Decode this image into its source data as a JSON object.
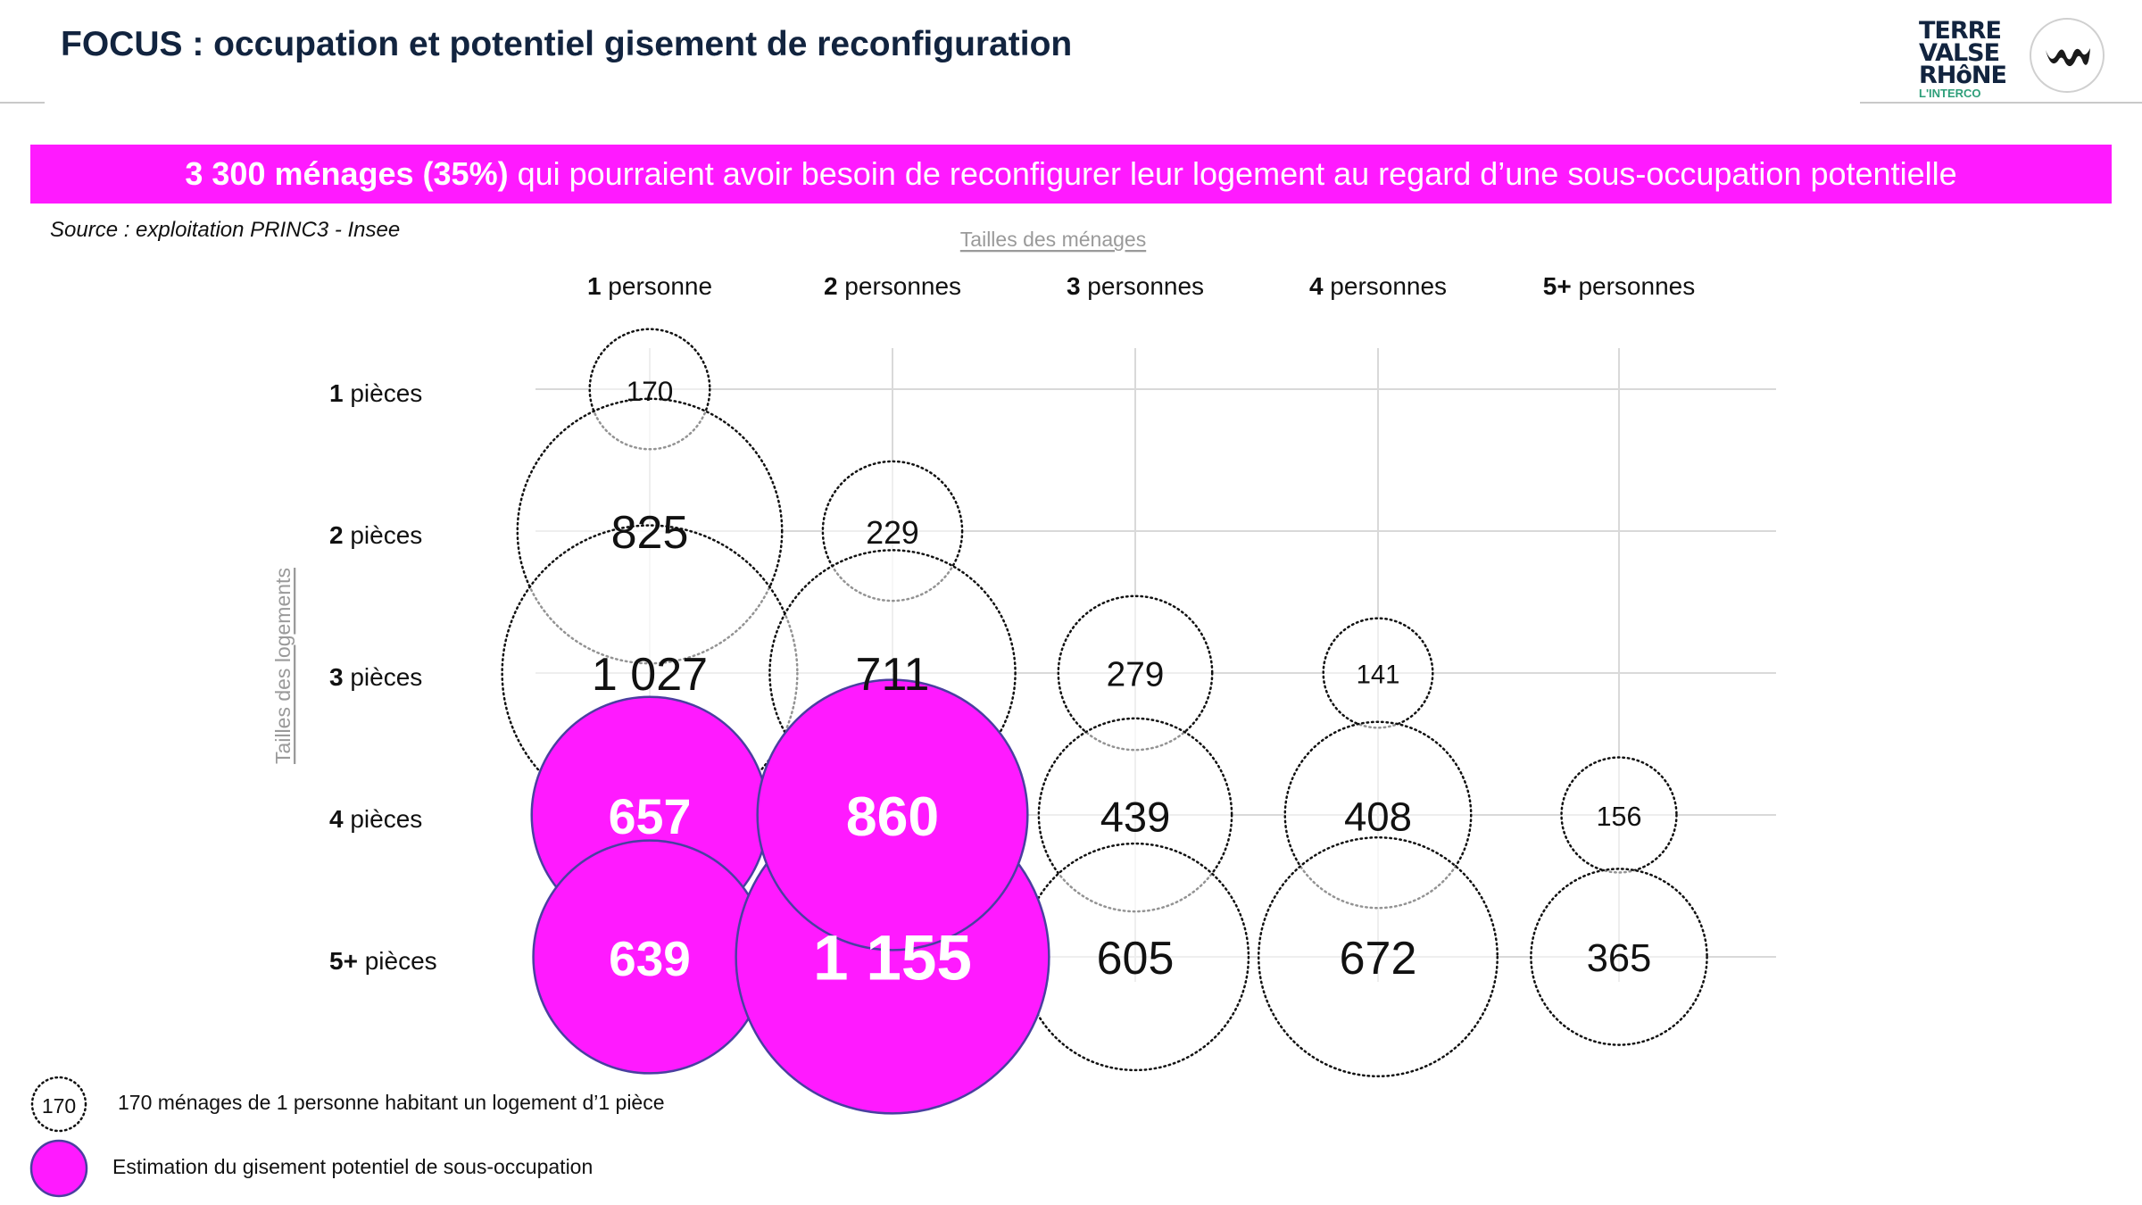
{
  "title": "FOCUS : occupation et potentiel gisement de reconfiguration",
  "logo": {
    "lines": [
      "TERRE",
      "VALSE",
      "RHôNE"
    ],
    "sub": "L'INTERCO"
  },
  "banner": {
    "bold": "3 300 ménages (35%)",
    "text": " qui pourraient avoir besoin de reconfigurer leur logement au regard d’une sous-occupation potentielle"
  },
  "source": "Source : exploitation PRINC3 - Insee",
  "colors": {
    "accent": "#ff1aff",
    "title": "#12243f",
    "grid": "#d9d9d9"
  },
  "chart_data": {
    "type": "bubble",
    "xlabel": "Tailles des ménages",
    "ylabel": "Tailles des logements",
    "columns": [
      {
        "num": "1",
        "word": " personne"
      },
      {
        "num": "2",
        "word": " personnes"
      },
      {
        "num": "3",
        "word": " personnes"
      },
      {
        "num": "4",
        "word": " personnes"
      },
      {
        "num": "5+",
        "word": " personnes"
      }
    ],
    "rows": [
      {
        "num": "1",
        "word": " pièces"
      },
      {
        "num": "2",
        "word": " pièces"
      },
      {
        "num": "3",
        "word": " pièces"
      },
      {
        "num": "4",
        "word": " pièces"
      },
      {
        "num": "5+",
        "word": " pièces"
      }
    ],
    "households": [
      {
        "col": 0,
        "row": 0,
        "value": 170,
        "label": "170"
      },
      {
        "col": 0,
        "row": 1,
        "value": 825,
        "label": "825"
      },
      {
        "col": 0,
        "row": 2,
        "value": 1027,
        "label": "1 027"
      },
      {
        "col": 1,
        "row": 1,
        "value": 229,
        "label": "229"
      },
      {
        "col": 1,
        "row": 2,
        "value": 711,
        "label": "711"
      },
      {
        "col": 2,
        "row": 2,
        "value": 279,
        "label": "279"
      },
      {
        "col": 2,
        "row": 3,
        "value": 439,
        "label": "439"
      },
      {
        "col": 2,
        "row": 4,
        "value": 605,
        "label": "605"
      },
      {
        "col": 3,
        "row": 2,
        "value": 141,
        "label": "141"
      },
      {
        "col": 3,
        "row": 3,
        "value": 408,
        "label": "408"
      },
      {
        "col": 3,
        "row": 4,
        "value": 672,
        "label": "672"
      },
      {
        "col": 4,
        "row": 3,
        "value": 156,
        "label": "156"
      },
      {
        "col": 4,
        "row": 4,
        "value": 365,
        "label": "365"
      }
    ],
    "potential": [
      {
        "col": 0,
        "row": 3,
        "value": 657,
        "label": "657"
      },
      {
        "col": 0,
        "row": 4,
        "value": 639,
        "label": "639"
      },
      {
        "col": 1,
        "row": 4,
        "value": 1155,
        "label": "1 155"
      },
      {
        "col": 1,
        "row": 3,
        "value": 860,
        "label": "860"
      }
    ],
    "legend": [
      {
        "symbol": "170",
        "text": "170 ménages de 1 personne habitant un logement d’1 pièce",
        "style": "dotted"
      },
      {
        "symbol": "",
        "text": "Estimation du gisement potentiel de sous-occupation",
        "style": "filled"
      }
    ]
  }
}
